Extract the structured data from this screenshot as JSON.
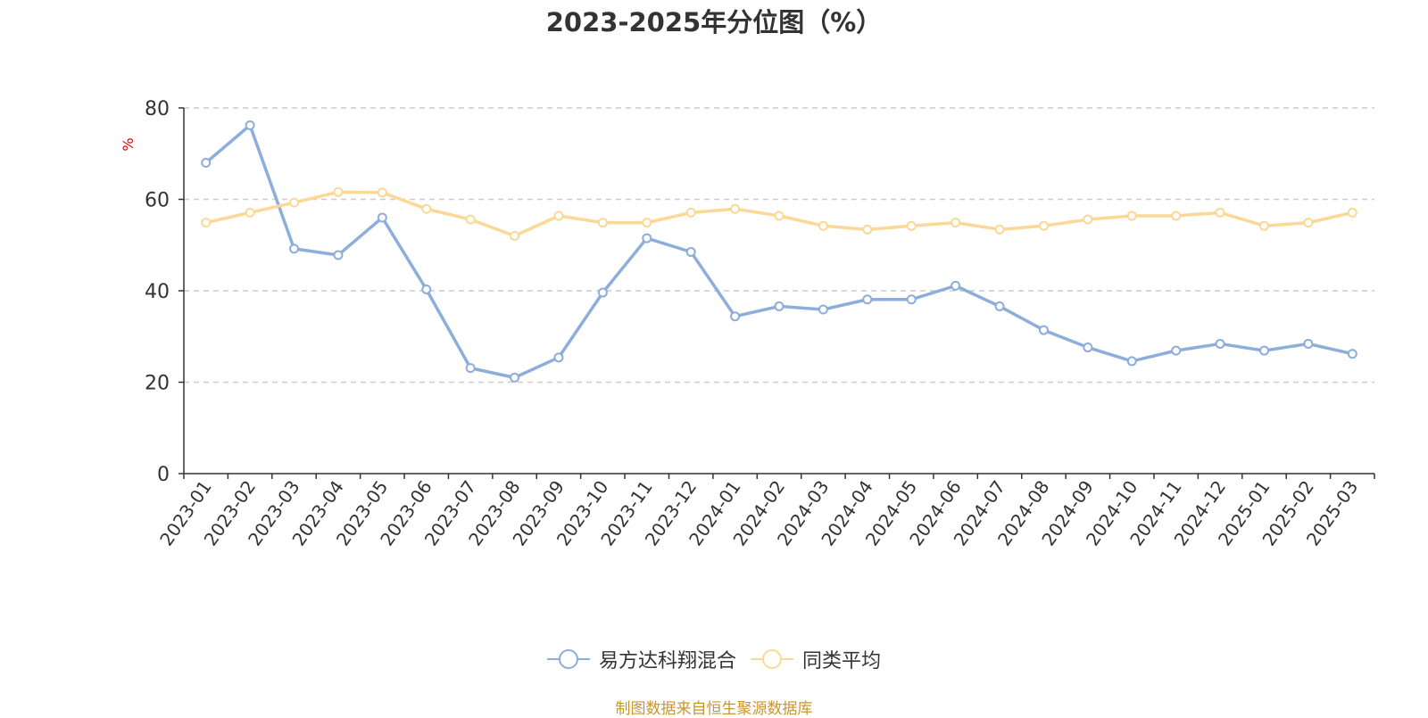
{
  "chart_data": {
    "type": "line",
    "title": "2023-2025年分位图（%）",
    "ylabel": "%",
    "ylim": [
      0,
      80
    ],
    "yticks": [
      0,
      20,
      40,
      60,
      80
    ],
    "grid": true,
    "legend_position": "bottom",
    "categories": [
      "2023-01",
      "2023-02",
      "2023-03",
      "2023-04",
      "2023-05",
      "2023-06",
      "2023-07",
      "2023-08",
      "2023-09",
      "2023-10",
      "2023-11",
      "2023-12",
      "2024-01",
      "2024-02",
      "2024-03",
      "2024-04",
      "2024-05",
      "2024-06",
      "2024-07",
      "2024-08",
      "2024-09",
      "2024-10",
      "2024-11",
      "2024-12",
      "2025-01",
      "2025-02",
      "2025-03"
    ],
    "series": [
      {
        "name": "易方达科翔混合",
        "color": "#8daddb",
        "values": [
          68,
          76.2,
          49.2,
          47.8,
          56,
          40.3,
          23.1,
          21,
          25.4,
          39.6,
          51.5,
          48.5,
          34.4,
          36.6,
          35.9,
          38.1,
          38.1,
          41.1,
          36.6,
          31.4,
          27.6,
          24.6,
          26.9,
          28.4,
          26.9,
          28.4,
          26.2
        ]
      },
      {
        "name": "同类平均",
        "color": "#fbd896",
        "values": [
          54.9,
          57.1,
          59.3,
          61.6,
          61.5,
          57.9,
          55.6,
          52,
          56.4,
          54.9,
          54.9,
          57.1,
          57.9,
          56.4,
          54.2,
          53.4,
          54.2,
          54.9,
          53.4,
          54.2,
          55.6,
          56.4,
          56.4,
          57.1,
          54.2,
          54.9,
          57.1
        ]
      }
    ]
  },
  "footer": {
    "source": "制图数据来自恒生聚源数据库"
  },
  "colors": {
    "axis": "#333333",
    "grid": "#cccccc",
    "ylabel": "#e00000",
    "source": "#c8962e"
  }
}
